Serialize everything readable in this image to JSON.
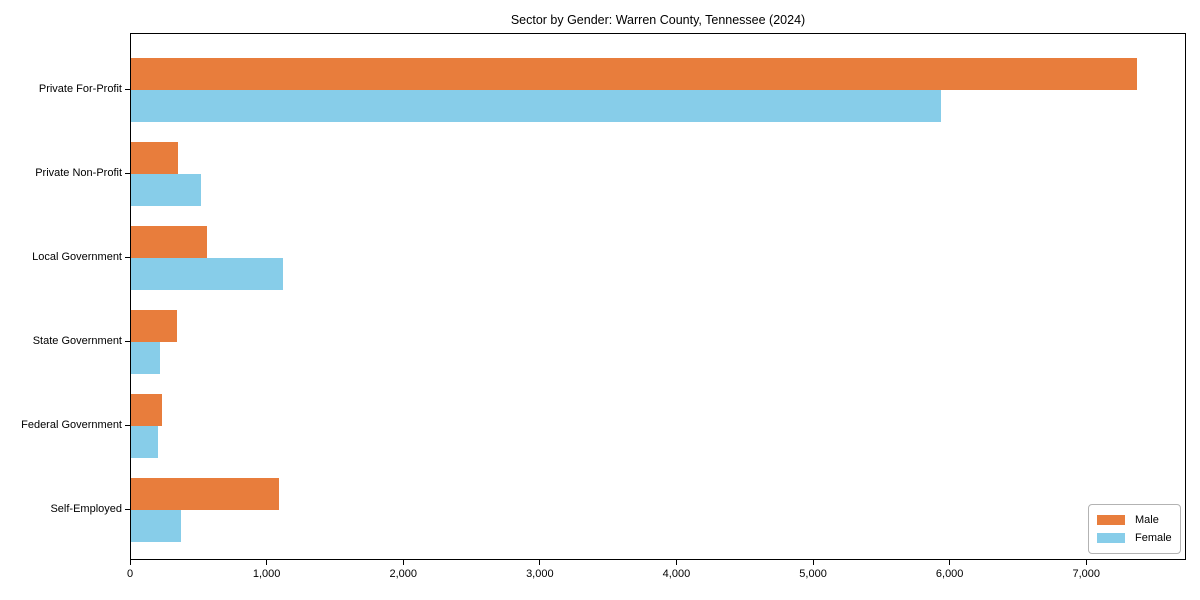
{
  "chart_data": {
    "type": "bar",
    "orientation": "horizontal",
    "title": "Sector by Gender: Warren County, Tennessee (2024)",
    "categories": [
      "Private For-Profit",
      "Private Non-Profit",
      "Local Government",
      "State Government",
      "Federal Government",
      "Self-Employed"
    ],
    "series": [
      {
        "name": "Male",
        "color": "#e87d3c",
        "values": [
          7360,
          345,
          555,
          340,
          225,
          1085
        ]
      },
      {
        "name": "Female",
        "color": "#87cde9",
        "values": [
          5930,
          510,
          1115,
          210,
          195,
          365
        ]
      }
    ],
    "xlabel": "",
    "ylabel": "",
    "xlim": [
      0,
      7730
    ],
    "xticks": [
      0,
      1000,
      2000,
      3000,
      4000,
      5000,
      6000,
      7000
    ],
    "xtick_labels": [
      "0",
      "1,000",
      "2,000",
      "3,000",
      "4,000",
      "5,000",
      "6,000",
      "7,000"
    ],
    "grid": false,
    "legend": {
      "position": "lower right",
      "entries": [
        "Male",
        "Female"
      ]
    }
  }
}
